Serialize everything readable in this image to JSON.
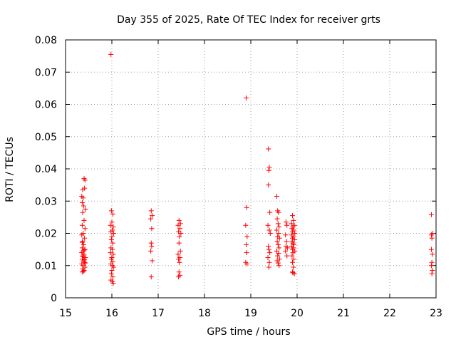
{
  "chart_data": {
    "type": "scatter",
    "title": "Day 355 of 2025, Rate Of TEC Index for receiver grts",
    "xlabel": "GPS time / hours",
    "ylabel": "ROTI / TECUs",
    "xlim": [
      15,
      23
    ],
    "ylim": [
      0,
      0.08
    ],
    "x_ticks": [
      "15",
      "16",
      "17",
      "18",
      "19",
      "20",
      "21",
      "22",
      "23"
    ],
    "y_ticks": [
      "0",
      "0.01",
      "0.02",
      "0.03",
      "0.04",
      "0.05",
      "0.06",
      "0.07",
      "0.08"
    ],
    "grid": true,
    "marker": "plus",
    "series": [
      {
        "color": "#ff0000",
        "points": [
          [
            15.35,
            0.0315
          ],
          [
            15.38,
            0.031
          ],
          [
            15.4,
            0.037
          ],
          [
            15.42,
            0.0365
          ],
          [
            15.37,
            0.0335
          ],
          [
            15.41,
            0.034
          ],
          [
            15.36,
            0.0295
          ],
          [
            15.39,
            0.0285
          ],
          [
            15.43,
            0.0275
          ],
          [
            15.37,
            0.0265
          ],
          [
            15.4,
            0.024
          ],
          [
            15.36,
            0.0225
          ],
          [
            15.42,
            0.0215
          ],
          [
            15.38,
            0.02
          ],
          [
            15.35,
            0.0195
          ],
          [
            15.41,
            0.0185
          ],
          [
            15.37,
            0.0175
          ],
          [
            15.39,
            0.0165
          ],
          [
            15.36,
            0.0155
          ],
          [
            15.42,
            0.015
          ],
          [
            15.38,
            0.0145
          ],
          [
            15.35,
            0.014
          ],
          [
            15.4,
            0.0135
          ],
          [
            15.37,
            0.013
          ],
          [
            15.43,
            0.0125
          ],
          [
            15.36,
            0.012
          ],
          [
            15.39,
            0.0115
          ],
          [
            15.41,
            0.011
          ],
          [
            15.35,
            0.0105
          ],
          [
            15.38,
            0.01
          ],
          [
            15.42,
            0.0095
          ],
          [
            15.37,
            0.009
          ],
          [
            15.4,
            0.0085
          ],
          [
            15.36,
            0.008
          ],
          [
            15.39,
            0.0082
          ],
          [
            15.41,
            0.0118
          ],
          [
            15.38,
            0.0128
          ],
          [
            15.4,
            0.0148
          ],
          [
            15.36,
            0.0172
          ],
          [
            15.43,
            0.0108
          ],
          [
            15.98,
            0.0755
          ],
          [
            15.99,
            0.027
          ],
          [
            16.02,
            0.026
          ],
          [
            16.0,
            0.0235
          ],
          [
            15.97,
            0.0225
          ],
          [
            16.03,
            0.022
          ],
          [
            16.01,
            0.021
          ],
          [
            15.98,
            0.0205
          ],
          [
            16.04,
            0.02
          ],
          [
            16.0,
            0.019
          ],
          [
            15.99,
            0.018
          ],
          [
            16.02,
            0.017
          ],
          [
            15.98,
            0.0155
          ],
          [
            16.01,
            0.015
          ],
          [
            15.97,
            0.014
          ],
          [
            16.03,
            0.0135
          ],
          [
            16.0,
            0.0125
          ],
          [
            15.99,
            0.012
          ],
          [
            16.02,
            0.0112
          ],
          [
            15.98,
            0.0105
          ],
          [
            16.01,
            0.01
          ],
          [
            16.04,
            0.0095
          ],
          [
            16.0,
            0.0085
          ],
          [
            15.99,
            0.0075
          ],
          [
            16.02,
            0.0065
          ],
          [
            15.98,
            0.0055
          ],
          [
            16.01,
            0.005
          ],
          [
            16.03,
            0.0045
          ],
          [
            16.85,
            0.027
          ],
          [
            16.87,
            0.0255
          ],
          [
            16.84,
            0.0245
          ],
          [
            16.86,
            0.0215
          ],
          [
            16.85,
            0.017
          ],
          [
            16.86,
            0.016
          ],
          [
            16.84,
            0.0145
          ],
          [
            16.87,
            0.0115
          ],
          [
            16.85,
            0.0065
          ],
          [
            17.45,
            0.024
          ],
          [
            17.48,
            0.023
          ],
          [
            17.43,
            0.0225
          ],
          [
            17.47,
            0.0215
          ],
          [
            17.44,
            0.0205
          ],
          [
            17.49,
            0.02
          ],
          [
            17.46,
            0.019
          ],
          [
            17.45,
            0.017
          ],
          [
            17.48,
            0.0145
          ],
          [
            17.43,
            0.0135
          ],
          [
            17.47,
            0.0125
          ],
          [
            17.44,
            0.012
          ],
          [
            17.46,
            0.011
          ],
          [
            17.45,
            0.008
          ],
          [
            17.47,
            0.007
          ],
          [
            17.44,
            0.0065
          ],
          [
            18.9,
            0.062
          ],
          [
            18.91,
            0.028
          ],
          [
            18.89,
            0.0225
          ],
          [
            18.92,
            0.019
          ],
          [
            18.9,
            0.0165
          ],
          [
            18.91,
            0.014
          ],
          [
            18.89,
            0.011
          ],
          [
            18.92,
            0.0105
          ],
          [
            19.38,
            0.0462
          ],
          [
            19.4,
            0.0405
          ],
          [
            19.39,
            0.0395
          ],
          [
            19.38,
            0.035
          ],
          [
            19.41,
            0.0265
          ],
          [
            19.37,
            0.0225
          ],
          [
            19.4,
            0.021
          ],
          [
            19.42,
            0.02
          ],
          [
            19.38,
            0.016
          ],
          [
            19.39,
            0.015
          ],
          [
            19.41,
            0.014
          ],
          [
            19.37,
            0.0125
          ],
          [
            19.4,
            0.011
          ],
          [
            19.39,
            0.0095
          ],
          [
            19.56,
            0.0315
          ],
          [
            19.58,
            0.027
          ],
          [
            19.6,
            0.0265
          ],
          [
            19.57,
            0.0245
          ],
          [
            19.59,
            0.023
          ],
          [
            19.61,
            0.022
          ],
          [
            19.56,
            0.021
          ],
          [
            19.6,
            0.02
          ],
          [
            19.58,
            0.019
          ],
          [
            19.62,
            0.0185
          ],
          [
            19.57,
            0.0175
          ],
          [
            19.59,
            0.0165
          ],
          [
            19.61,
            0.0155
          ],
          [
            19.56,
            0.0145
          ],
          [
            19.6,
            0.0138
          ],
          [
            19.58,
            0.013
          ],
          [
            19.62,
            0.012
          ],
          [
            19.57,
            0.0115
          ],
          [
            19.59,
            0.0108
          ],
          [
            19.61,
            0.01
          ],
          [
            19.76,
            0.0235
          ],
          [
            19.78,
            0.0225
          ],
          [
            19.75,
            0.0195
          ],
          [
            19.77,
            0.0175
          ],
          [
            19.76,
            0.016
          ],
          [
            19.79,
            0.0155
          ],
          [
            19.75,
            0.0145
          ],
          [
            19.78,
            0.013
          ],
          [
            19.9,
            0.0255
          ],
          [
            19.92,
            0.024
          ],
          [
            19.88,
            0.023
          ],
          [
            19.94,
            0.0225
          ],
          [
            19.91,
            0.022
          ],
          [
            19.89,
            0.0215
          ],
          [
            19.93,
            0.021
          ],
          [
            19.9,
            0.0205
          ],
          [
            19.95,
            0.02
          ],
          [
            19.88,
            0.0195
          ],
          [
            19.92,
            0.019
          ],
          [
            19.9,
            0.0185
          ],
          [
            19.94,
            0.018
          ],
          [
            19.89,
            0.0175
          ],
          [
            19.91,
            0.017
          ],
          [
            19.93,
            0.0165
          ],
          [
            19.88,
            0.016
          ],
          [
            19.92,
            0.0155
          ],
          [
            19.9,
            0.015
          ],
          [
            19.95,
            0.0145
          ],
          [
            19.91,
            0.014
          ],
          [
            19.89,
            0.013
          ],
          [
            19.93,
            0.012
          ],
          [
            19.9,
            0.011
          ],
          [
            19.92,
            0.0095
          ],
          [
            19.9,
            0.008
          ],
          [
            19.94,
            0.0075
          ],
          [
            19.91,
            0.0078
          ],
          [
            22.9,
            0.0258
          ],
          [
            22.92,
            0.02
          ],
          [
            22.9,
            0.0195
          ],
          [
            22.91,
            0.0185
          ],
          [
            22.9,
            0.015
          ],
          [
            22.92,
            0.0135
          ],
          [
            22.91,
            0.011
          ],
          [
            22.9,
            0.01
          ],
          [
            22.92,
            0.0085
          ],
          [
            22.91,
            0.0075
          ]
        ]
      }
    ]
  }
}
